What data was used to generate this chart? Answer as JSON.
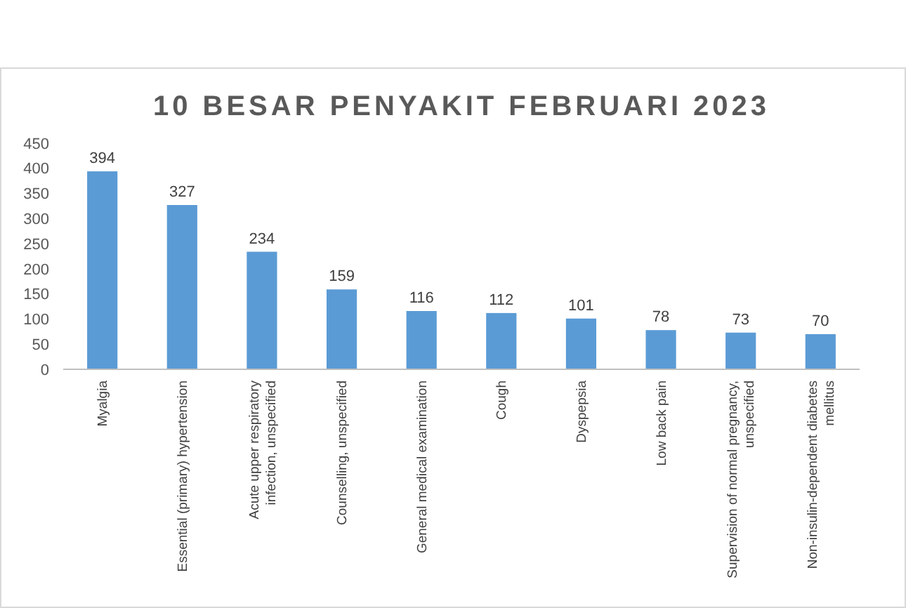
{
  "chart_data": {
    "type": "bar",
    "title": "10 BESAR PENYAKIT FEBRUARI 2023",
    "categories": [
      "Myalgia",
      "Essential (primary) hypertension",
      "Acute upper respiratory infection, unspecified",
      "Counselling, unspecified",
      "General medical examination",
      "Cough",
      "Dyspepsia",
      "Low back pain",
      "Supervision of normal pregnancy, unspecified",
      "Non-insulin-dependent diabetes mellitus"
    ],
    "values": [
      394,
      327,
      234,
      159,
      116,
      112,
      101,
      78,
      73,
      70
    ],
    "color": "#5b9bd5",
    "ylim": [
      0,
      450
    ],
    "yticks": [
      0,
      50,
      100,
      150,
      200,
      250,
      300,
      350,
      400,
      450
    ],
    "data_labels": true,
    "grid": false
  }
}
